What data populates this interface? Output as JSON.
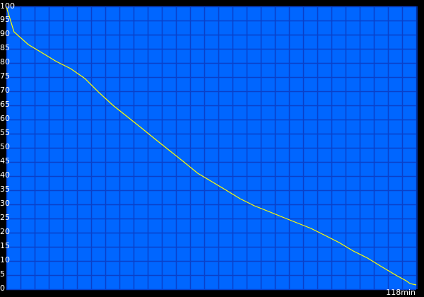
{
  "chart_data": {
    "type": "line",
    "title": "",
    "xlabel": "",
    "ylabel": "",
    "x_end_label": "118min",
    "xlim": [
      0,
      118
    ],
    "ylim": [
      0,
      100
    ],
    "y_ticks": [
      0,
      5,
      10,
      15,
      20,
      25,
      30,
      35,
      40,
      45,
      50,
      55,
      60,
      65,
      70,
      75,
      80,
      85,
      90,
      95,
      100
    ],
    "grid": true,
    "x_grid_columns": 29,
    "colors": {
      "background": "#0066ff",
      "grid": "#0a40c8",
      "line": "#ffff00",
      "frame": "#000000",
      "text": "#ffffff"
    },
    "series": [
      {
        "x": [
          0,
          0.2,
          2.2,
          6.3,
          10.4,
          14.4,
          18.5,
          22.6,
          26.7,
          30.7,
          34.8,
          38.9,
          42.9,
          47.0,
          51.1,
          55.1,
          59.2,
          63.3,
          67.3,
          71.4,
          75.5,
          79.5,
          83.6,
          87.7,
          91.8,
          95.8,
          99.9,
          104.0,
          108.0,
          112.1,
          115.1,
          116.2,
          118
        ],
        "y": [
          99.5,
          99,
          91,
          86.5,
          83.5,
          80.5,
          78,
          74.5,
          69.5,
          65,
          61,
          57,
          53,
          49,
          45,
          41,
          38,
          35,
          32,
          29.5,
          27.5,
          25.5,
          23.5,
          21.5,
          19,
          16.5,
          13.5,
          11,
          8,
          5,
          3,
          2,
          1.5
        ]
      }
    ]
  }
}
